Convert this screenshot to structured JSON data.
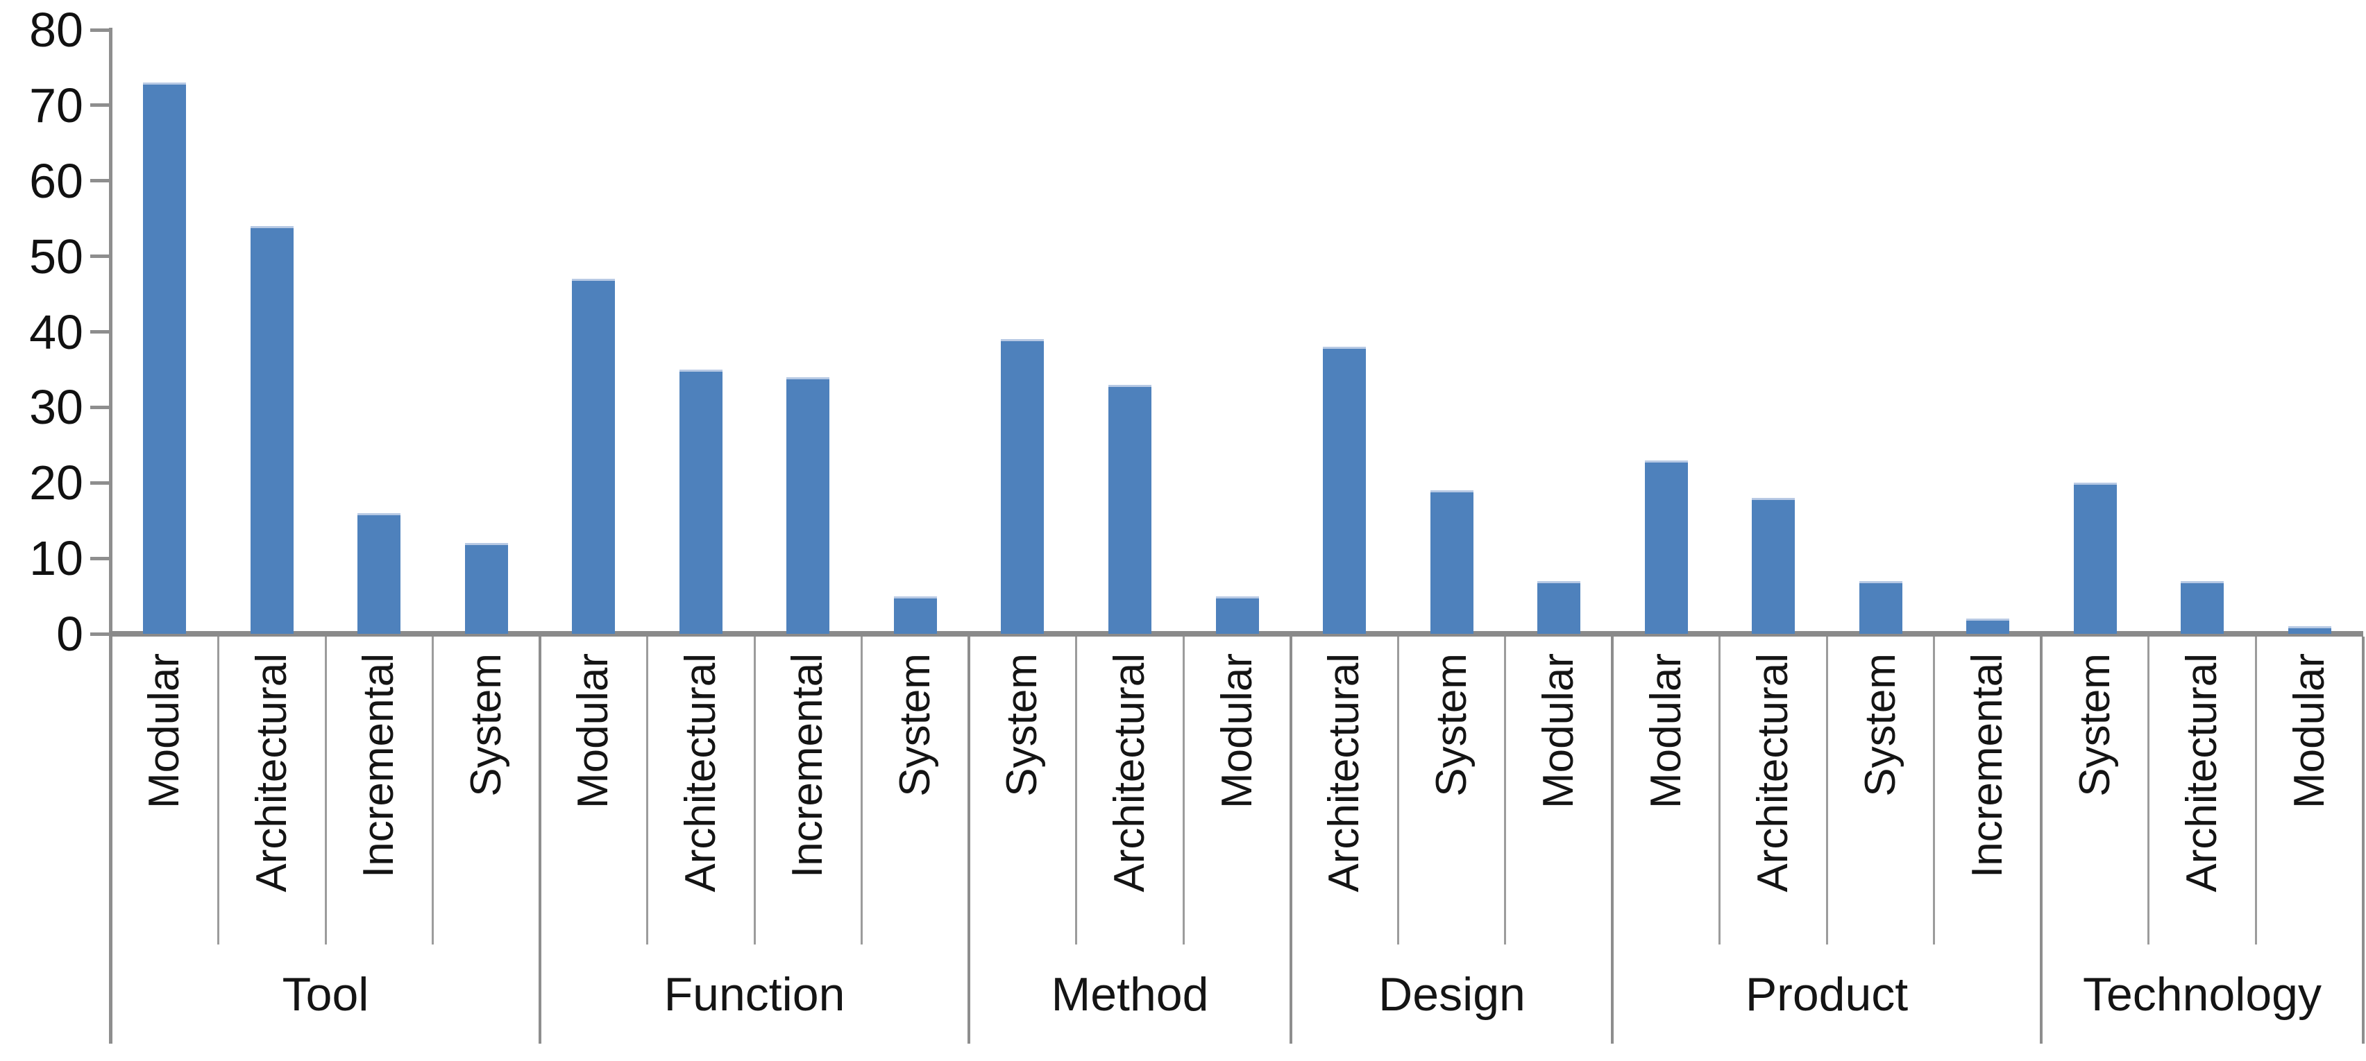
{
  "chart_data": {
    "type": "bar",
    "title": "",
    "xlabel": "",
    "ylabel": "",
    "ylim": [
      0,
      80
    ],
    "ytick_step": 10,
    "yticks": [
      0,
      10,
      20,
      30,
      40,
      50,
      60,
      70,
      80
    ],
    "grid": false,
    "legend": false,
    "bar_color": "#4E81BC",
    "axis_color": "#8E8E8E",
    "text_color": "#141414",
    "groups": [
      {
        "label": "Tool",
        "bars": [
          {
            "label": "Modular",
            "value": 73
          },
          {
            "label": "Architectural",
            "value": 54
          },
          {
            "label": "Incremental",
            "value": 16
          },
          {
            "label": "System",
            "value": 12
          }
        ]
      },
      {
        "label": "Function",
        "bars": [
          {
            "label": "Modular",
            "value": 47
          },
          {
            "label": "Architectural",
            "value": 35
          },
          {
            "label": "Incremental",
            "value": 34
          },
          {
            "label": "System",
            "value": 5
          }
        ]
      },
      {
        "label": "Method",
        "bars": [
          {
            "label": "System",
            "value": 39
          },
          {
            "label": "Architectural",
            "value": 33
          },
          {
            "label": "Modular",
            "value": 5
          }
        ]
      },
      {
        "label": "Design",
        "bars": [
          {
            "label": "Architectural",
            "value": 38
          },
          {
            "label": "System",
            "value": 19
          },
          {
            "label": "Modular",
            "value": 7
          }
        ]
      },
      {
        "label": "Product",
        "bars": [
          {
            "label": "Modular",
            "value": 23
          },
          {
            "label": "Architectural",
            "value": 18
          },
          {
            "label": "System",
            "value": 7
          },
          {
            "label": "Incremental",
            "value": 2
          }
        ]
      },
      {
        "label": "Technology",
        "bars": [
          {
            "label": "System",
            "value": 20
          },
          {
            "label": "Architectural",
            "value": 7
          },
          {
            "label": "Modular",
            "value": 1
          }
        ]
      }
    ]
  }
}
